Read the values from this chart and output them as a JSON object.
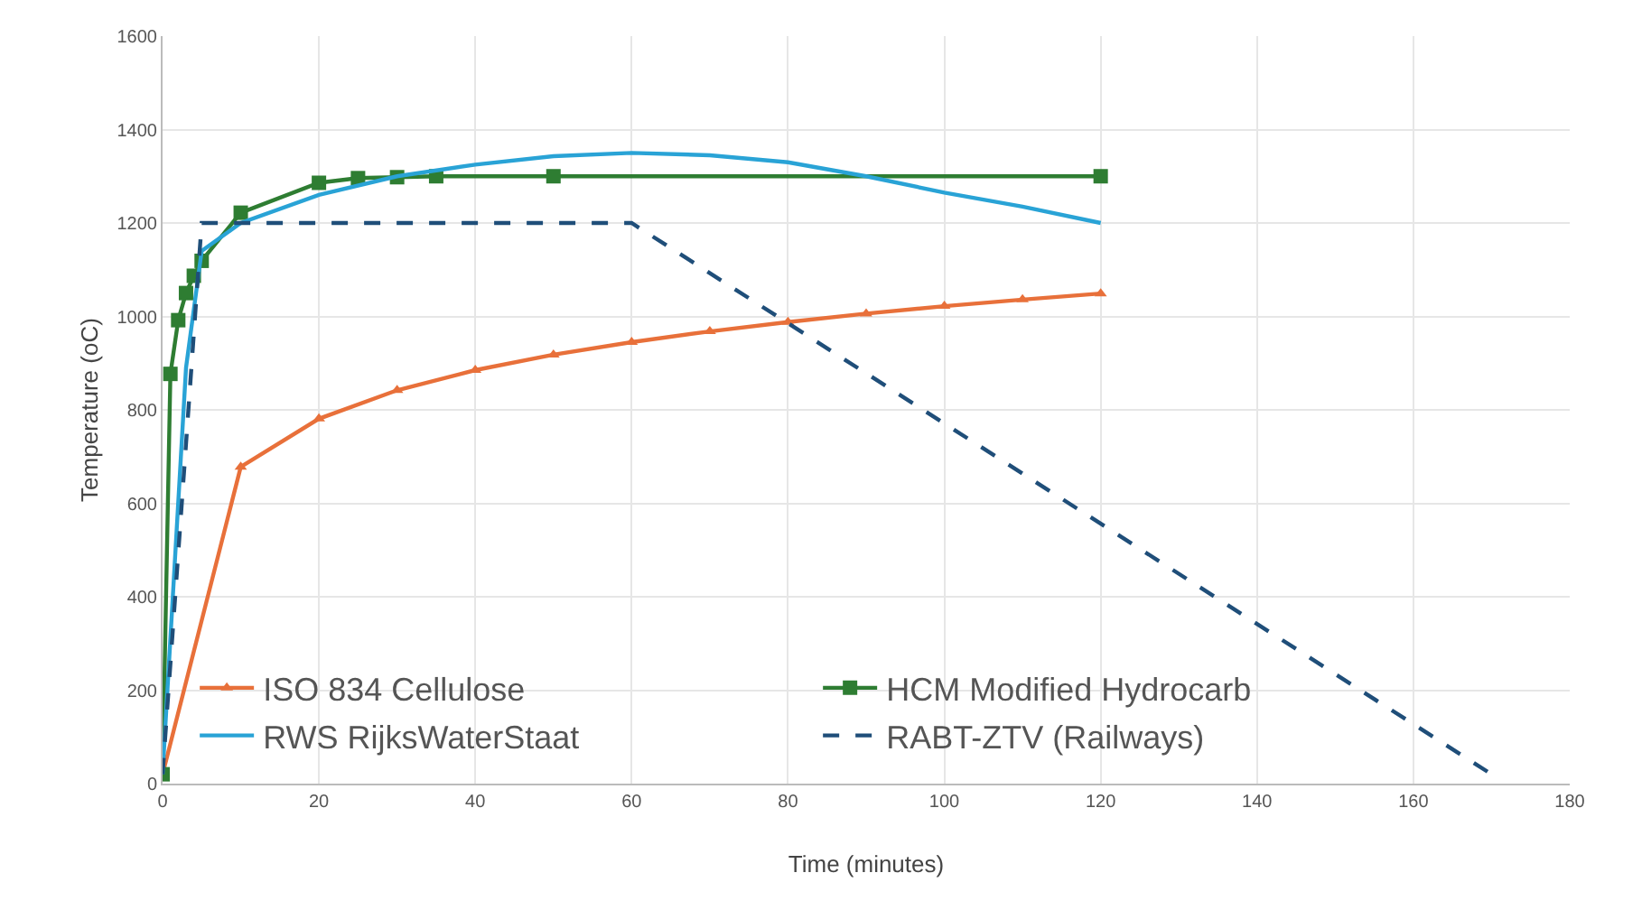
{
  "chart_data": {
    "type": "line",
    "xlabel": "Time (minutes)",
    "ylabel": "Temperature (oC)",
    "xlim": [
      0,
      180
    ],
    "xticks": [
      0,
      20,
      40,
      60,
      80,
      100,
      120,
      140,
      160,
      180
    ],
    "ylim": [
      0,
      1600
    ],
    "yticks": [
      0,
      200,
      400,
      600,
      800,
      1000,
      1200,
      1400,
      1600
    ],
    "grid": true,
    "legend": "bottom left",
    "series": [
      {
        "name": "ISO 834 Cellulose",
        "color": "#e8703a",
        "marker": "triangle",
        "line_style": "solid",
        "x": [
          0,
          10,
          20,
          30,
          40,
          50,
          60,
          70,
          80,
          90,
          100,
          110,
          120
        ],
        "values": [
          20,
          678,
          781,
          842,
          885,
          918,
          945,
          968,
          988,
          1006,
          1022,
          1036,
          1049
        ]
      },
      {
        "name": "HCM Modified Hydrocarb",
        "color": "#2e7d32",
        "marker": "square",
        "line_style": "solid",
        "x": [
          0,
          1,
          2,
          3,
          4,
          5,
          10,
          20,
          25,
          30,
          35,
          50,
          120
        ],
        "values": [
          20,
          877,
          992,
          1050,
          1087,
          1119,
          1222,
          1286,
          1296,
          1298,
          1300,
          1300,
          1300
        ]
      },
      {
        "name": "RWS RijksWaterStaat",
        "color": "#29a3d6",
        "marker": "none",
        "line_style": "solid",
        "x": [
          0,
          3,
          5,
          10,
          20,
          30,
          40,
          50,
          60,
          70,
          80,
          90,
          100,
          110,
          120
        ],
        "values": [
          20,
          890,
          1140,
          1200,
          1260,
          1300,
          1325,
          1343,
          1350,
          1345,
          1330,
          1300,
          1265,
          1235,
          1200
        ]
      },
      {
        "name": "RABT-ZTV (Railways)",
        "color": "#1f4e79",
        "marker": "none",
        "line_style": "dashed",
        "x": [
          0,
          5,
          60,
          170
        ],
        "values": [
          20,
          1200,
          1200,
          20
        ]
      }
    ]
  }
}
